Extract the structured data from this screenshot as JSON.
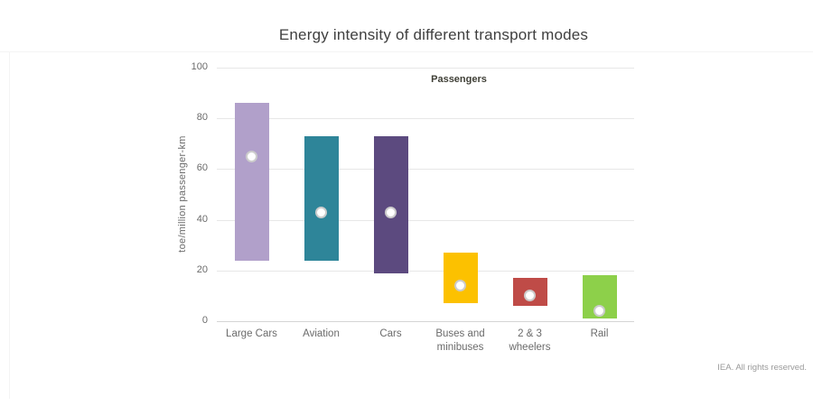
{
  "chart_data": {
    "type": "bar",
    "subtype": "floating-range-columns-with-marker-point",
    "title": "Energy intensity of different transport modes",
    "inner_label": "Passengers",
    "xlabel": "",
    "ylabel": "toe/million passenger-km",
    "ylim": [
      0,
      100
    ],
    "yticks": [
      0,
      20,
      40,
      60,
      80,
      100
    ],
    "grid": true,
    "legend_position": "none",
    "categories": [
      "Large Cars",
      "Aviation",
      "Cars",
      "Buses and minibuses",
      "2 & 3 wheelers",
      "Rail"
    ],
    "series": [
      {
        "name": "Passengers",
        "points": [
          {
            "category": "Large Cars",
            "low": 24,
            "high": 86,
            "marker": 65,
            "color": "#b1a0ca"
          },
          {
            "category": "Aviation",
            "low": 24,
            "high": 73,
            "marker": 43,
            "color": "#2e8599"
          },
          {
            "category": "Cars",
            "low": 19,
            "high": 73,
            "marker": 43,
            "color": "#5c4a7f"
          },
          {
            "category": "Buses and minibuses",
            "low": 7,
            "high": 27,
            "marker": 14,
            "color": "#fcc100"
          },
          {
            "category": "2 & 3 wheelers",
            "low": 6,
            "high": 17,
            "marker": 10,
            "color": "#bf4b47"
          },
          {
            "category": "Rail",
            "low": 1,
            "high": 18,
            "marker": 4,
            "color": "#8dd04a"
          }
        ]
      }
    ],
    "marker_style": {
      "fill": "#ffffff",
      "border": "#cccccc"
    }
  },
  "footer": "IEA. All rights reserved."
}
